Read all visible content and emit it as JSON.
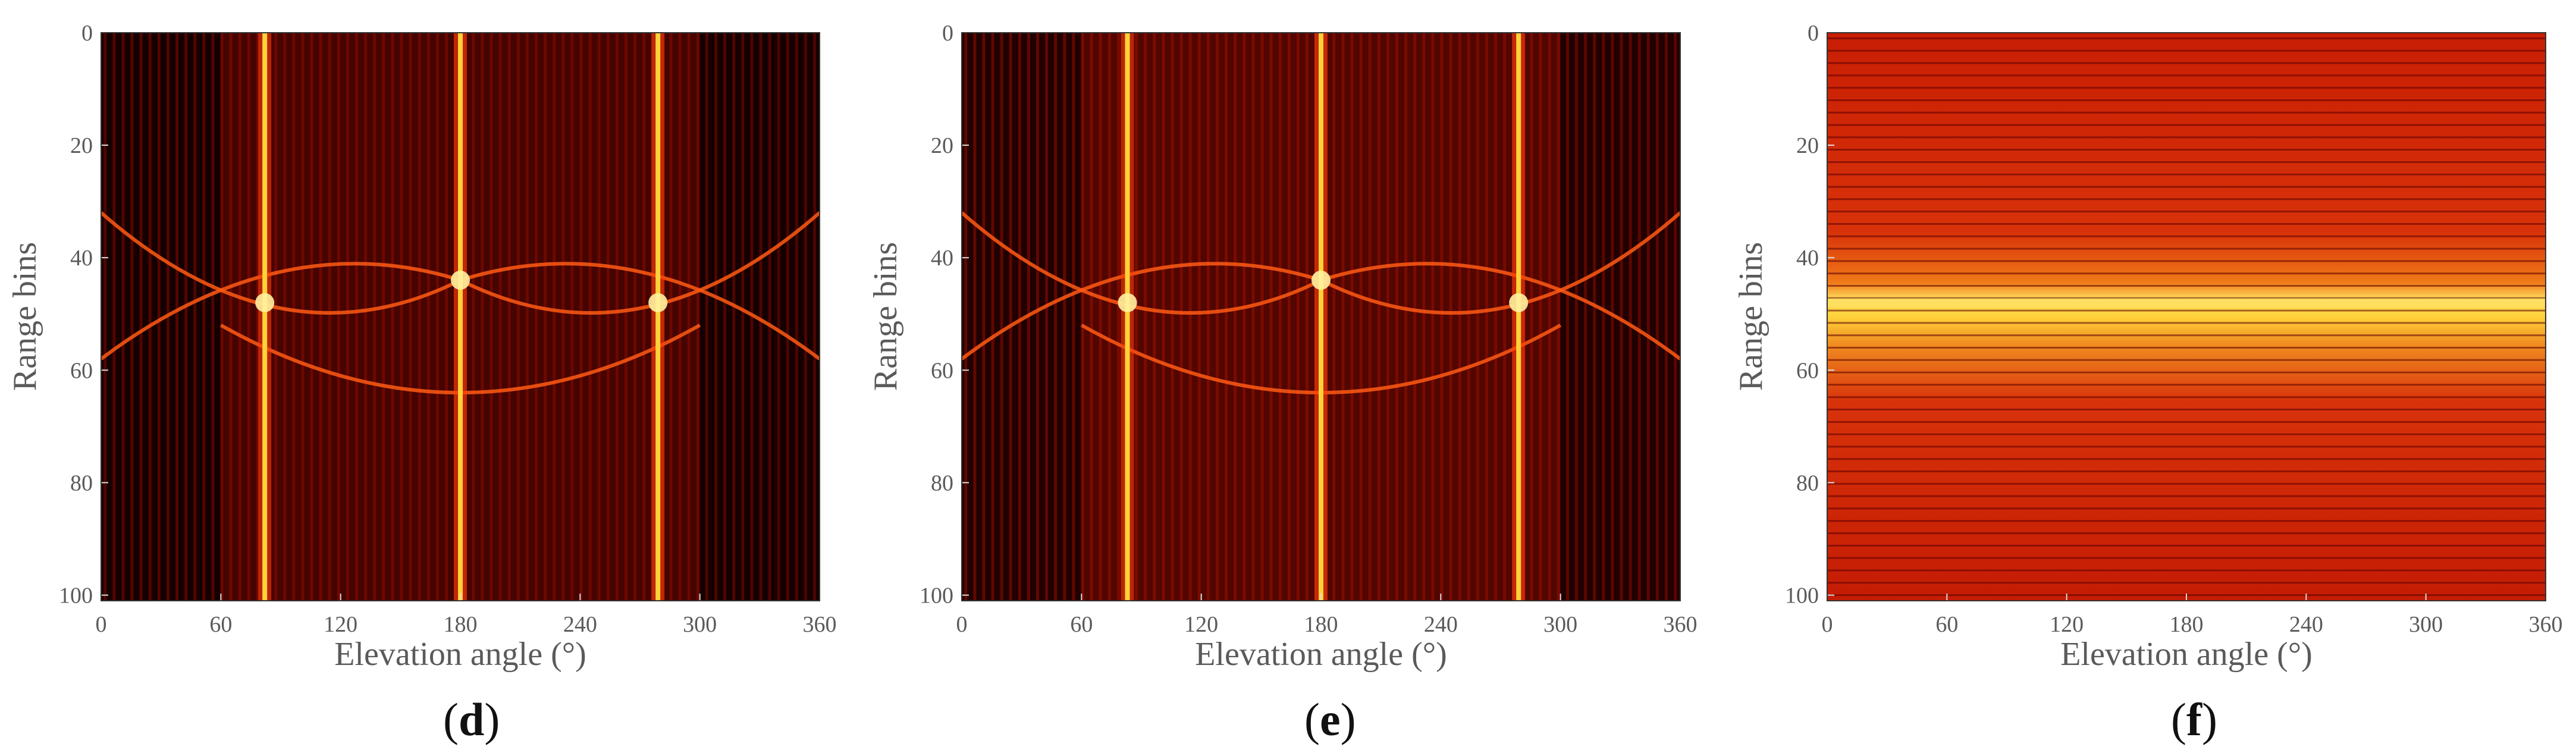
{
  "chart_data": [
    {
      "type": "heatmap",
      "panel": "d",
      "caption_letter": "d",
      "xlabel": "Elevation angle (°)",
      "ylabel": "Range bins",
      "xlim": [
        0,
        360
      ],
      "ylim": [
        101,
        0
      ],
      "xticks": [
        "0",
        "60",
        "120",
        "180",
        "240",
        "300",
        "360"
      ],
      "yticks": [
        "0",
        "20",
        "40",
        "60",
        "80",
        "100"
      ],
      "colormap": "hot",
      "bright_vertical_lines_deg": [
        82,
        180,
        279
      ],
      "arc_center_bin": 44,
      "colors": {
        "dark": "#1a0000",
        "mid": "#a00c00",
        "bright": "#ffd23a"
      }
    },
    {
      "type": "heatmap",
      "panel": "e",
      "caption_letter": "e",
      "xlabel": "Elevation angle (°)",
      "ylabel": "Range bins",
      "xlim": [
        0,
        360
      ],
      "ylim": [
        101,
        0
      ],
      "xticks": [
        "0",
        "60",
        "120",
        "180",
        "240",
        "300",
        "360"
      ],
      "yticks": [
        "0",
        "20",
        "40",
        "60",
        "80",
        "100"
      ],
      "colormap": "hot",
      "bright_vertical_lines_deg": [
        83,
        180,
        279
      ],
      "arc_center_bin": 44,
      "colors": {
        "dark": "#2a0000",
        "mid": "#b01000",
        "bright": "#ffd23a"
      }
    },
    {
      "type": "heatmap",
      "panel": "f",
      "caption_letter": "f",
      "xlabel": "Elevation angle (°)",
      "ylabel": "Range bins",
      "xlim": [
        0,
        360
      ],
      "ylim": [
        101,
        0
      ],
      "xticks": [
        "0",
        "60",
        "120",
        "180",
        "240",
        "300",
        "360"
      ],
      "yticks": [
        "0",
        "20",
        "40",
        "60",
        "80",
        "100"
      ],
      "colormap": "hot",
      "bright_horizontal_band_bin": 48,
      "colors": {
        "dark": "#5a0000",
        "mid": "#d83a10",
        "bright": "#ffe060"
      }
    }
  ]
}
